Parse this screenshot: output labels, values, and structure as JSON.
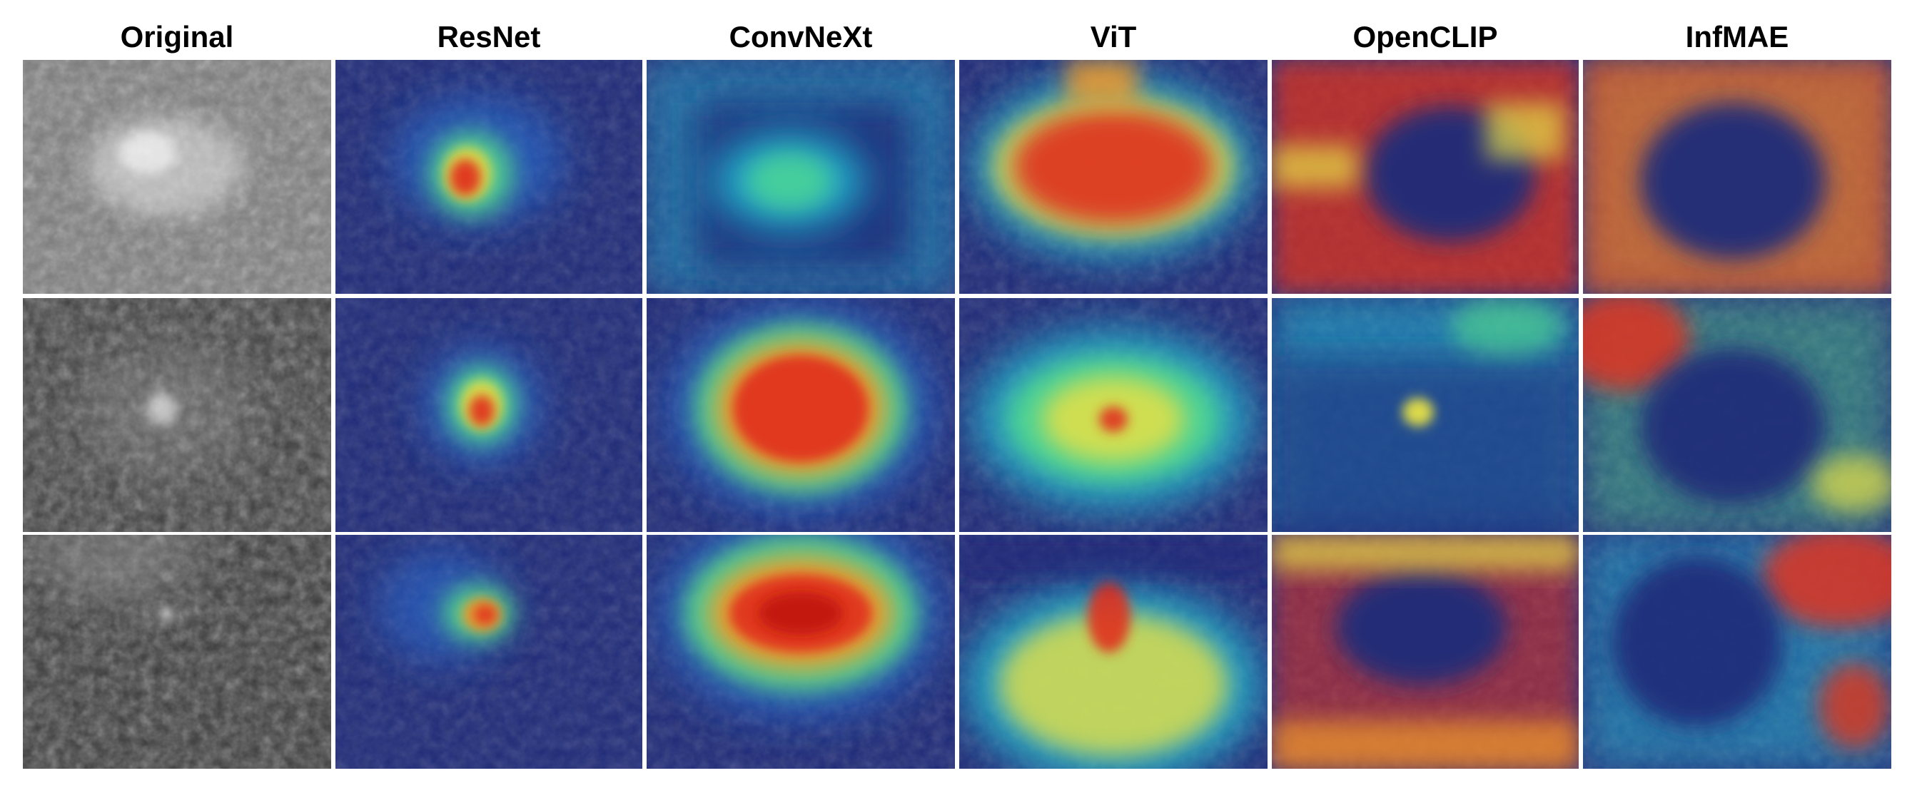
{
  "columns": [
    "Original",
    "ResNet",
    "ConvNeXt",
    "ViT",
    "OpenCLIP",
    "InfMAE"
  ],
  "rows": 3
}
